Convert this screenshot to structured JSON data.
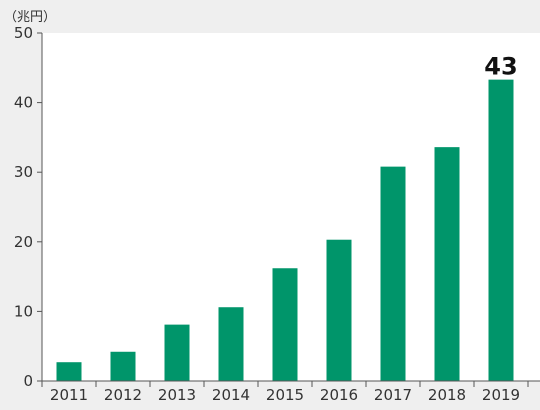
{
  "colors": {
    "background": "#efefef",
    "plot_background": "#ffffff",
    "bar": "#00956a",
    "axis": "#555555",
    "text": "#333333"
  },
  "chart_data": {
    "type": "bar",
    "title": "",
    "xlabel": "",
    "ylabel": "",
    "y_unit_label": "（兆円）",
    "categories": [
      "2011",
      "2012",
      "2013",
      "2014",
      "2015",
      "2016",
      "2017",
      "2018",
      "2019"
    ],
    "values": [
      2.7,
      4.2,
      8.1,
      10.6,
      16.2,
      20.3,
      30.8,
      33.6,
      43.3
    ],
    "ylim": [
      0,
      50
    ],
    "yticks": [
      0,
      10,
      20,
      30,
      40,
      50
    ],
    "grid": false,
    "legend": "none",
    "annotations": [
      {
        "category": "2019",
        "text": "43"
      }
    ]
  }
}
